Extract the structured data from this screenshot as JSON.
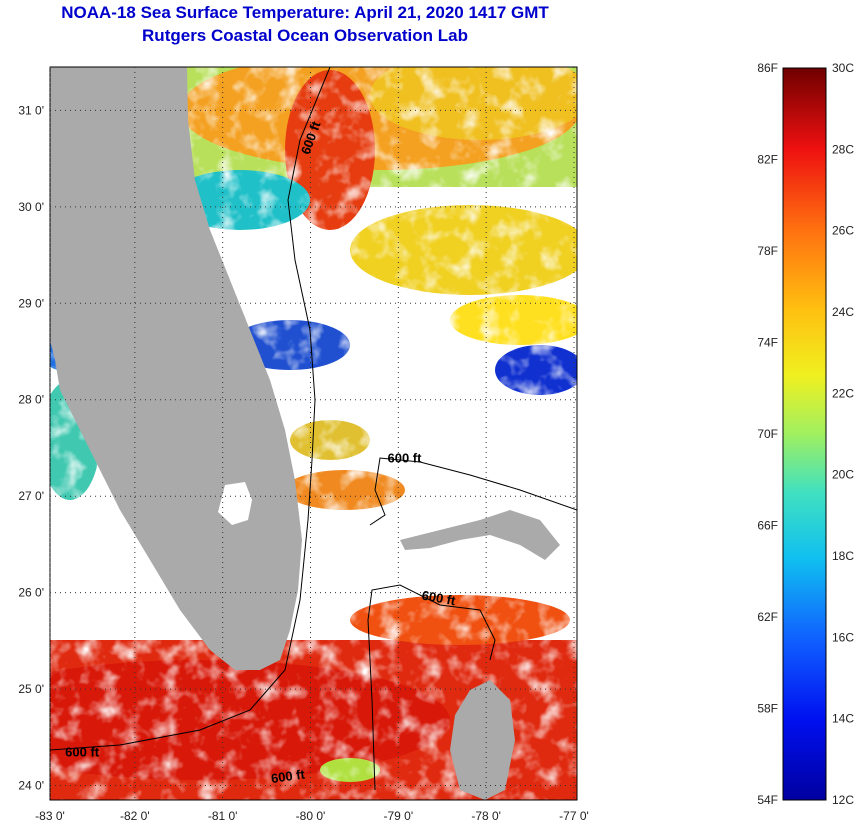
{
  "header": {
    "title": "NOAA-18 Sea Surface Temperature:  April 21, 2020 1417 GMT",
    "subtitle": "Rutgers Coastal Ocean Observation Lab"
  },
  "map": {
    "lon_range": [
      -83,
      -77
    ],
    "lat_range": [
      23.85,
      31.45
    ],
    "lon_ticks": [
      {
        "value": -83,
        "label": "-83 0'"
      },
      {
        "value": -82,
        "label": "-82 0'"
      },
      {
        "value": -81,
        "label": "-81 0'"
      },
      {
        "value": -80,
        "label": "-80 0'"
      },
      {
        "value": -79,
        "label": "-79 0'"
      },
      {
        "value": -78,
        "label": "-78 0'"
      },
      {
        "value": -77,
        "label": "-77 0'"
      }
    ],
    "lat_ticks": [
      {
        "value": 24,
        "label": "24 0'"
      },
      {
        "value": 25,
        "label": "25 0'"
      },
      {
        "value": 26,
        "label": "26 0'"
      },
      {
        "value": 27,
        "label": "27 0'"
      },
      {
        "value": 28,
        "label": "28 0'"
      },
      {
        "value": 29,
        "label": "29 0'"
      },
      {
        "value": 30,
        "label": "30 0'"
      },
      {
        "value": 31,
        "label": "31 0'"
      }
    ],
    "contour_labels": [
      {
        "text": "600 ft",
        "lon": -79.95,
        "lat": 30.7,
        "rotate": -70
      },
      {
        "text": "600 ft",
        "lon": -78.93,
        "lat": 27.35,
        "rotate": 0
      },
      {
        "text": "600 ft",
        "lon": -78.55,
        "lat": 25.9,
        "rotate": 10
      },
      {
        "text": "600 ft",
        "lon": -82.6,
        "lat": 24.3,
        "rotate": 0
      },
      {
        "text": "600 ft",
        "lon": -80.25,
        "lat": 24.05,
        "rotate": -8
      }
    ],
    "colors": {
      "land": "#aaaaaa",
      "cloud": "#ffffff"
    }
  },
  "colorbar": {
    "celsius_labels": [
      "30C",
      "28C",
      "26C",
      "24C",
      "22C",
      "20C",
      "18C",
      "16C",
      "14C",
      "12C"
    ],
    "fahrenheit_labels": [
      "86F",
      "82F",
      "78F",
      "74F",
      "70F",
      "66F",
      "62F",
      "58F",
      "54F"
    ],
    "c_range": [
      12,
      30
    ],
    "f_range": [
      54,
      86
    ]
  }
}
